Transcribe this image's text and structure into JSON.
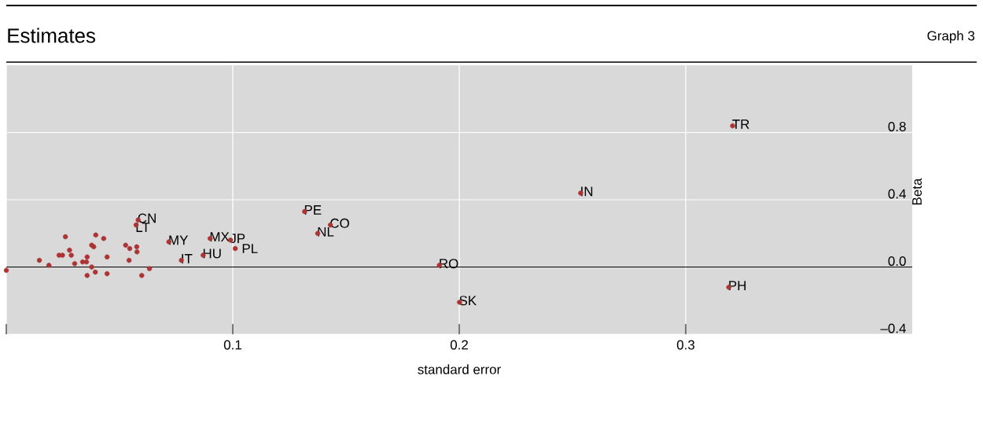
{
  "chart_data": {
    "type": "scatter",
    "title": "Estimates",
    "xlabel": "standard error",
    "ylabel": "Beta",
    "annotations": [
      "Graph 3",
      {
        "text": "CN",
        "x": 0.0582,
        "y": 0.28
      },
      {
        "text": "LT",
        "x": 0.0573,
        "y": 0.25
      },
      {
        "text": "MY",
        "x": 0.0718,
        "y": 0.15
      },
      {
        "text": "IT",
        "x": 0.0773,
        "y": 0.04
      },
      {
        "text": "HU",
        "x": 0.0869,
        "y": 0.07
      },
      {
        "text": "MX",
        "x": 0.09,
        "y": 0.17
      },
      {
        "text": "JP",
        "x": 0.099,
        "y": 0.16
      },
      {
        "text": "PL",
        "x": 0.1011,
        "y": 0.11
      },
      {
        "text": "PE",
        "x": 0.1317,
        "y": 0.33
      },
      {
        "text": "NL",
        "x": 0.1375,
        "y": 0.2
      },
      {
        "text": "CO",
        "x": 0.1431,
        "y": 0.25
      },
      {
        "text": "TR",
        "x": 0.3207,
        "y": 0.84
      },
      {
        "text": "IN",
        "x": 0.2536,
        "y": 0.44
      },
      {
        "text": "RO",
        "x": 0.1912,
        "y": 0.01
      },
      {
        "text": "SK",
        "x": 0.2001,
        "y": -0.21
      },
      {
        "text": "PH",
        "x": 0.319,
        "y": -0.12
      }
    ],
    "x": [
      0.0,
      0.0146,
      0.0188,
      0.0261,
      0.0233,
      0.0248,
      0.0279,
      0.0287,
      0.0302,
      0.0337,
      0.0354,
      0.0357,
      0.0372,
      0.0377,
      0.0357,
      0.0395,
      0.043,
      0.0377,
      0.0386,
      0.0393,
      0.0445,
      0.0445,
      0.0527,
      0.0545,
      0.0576,
      0.0577,
      0.0542,
      0.0598,
      0.0632,
      0.0582,
      0.0573,
      0.0718,
      0.0773,
      0.0869,
      0.09,
      0.099,
      0.1011,
      0.1317,
      0.1375,
      0.1431,
      0.3207,
      0.2536,
      0.1912,
      0.2001,
      0.319
    ],
    "values": [
      -0.02,
      0.04,
      0.01,
      0.18,
      0.07,
      0.07,
      0.1,
      0.07,
      0.02,
      0.03,
      0.03,
      0.06,
      null,
      0.0,
      -0.05,
      0.19,
      0.17,
      0.13,
      0.12,
      -0.03,
      0.06,
      -0.04,
      0.13,
      0.11,
      0.12,
      0.09,
      0.04,
      -0.05,
      -0.01,
      0.28,
      0.25,
      0.15,
      0.04,
      0.07,
      0.17,
      0.16,
      0.11,
      0.33,
      0.2,
      0.25,
      0.84,
      0.44,
      0.01,
      -0.21,
      -0.12
    ],
    "color": "#ac3434",
    "marker": "circle",
    "xlim": [
      0,
      0.4
    ],
    "xticks": [
      {
        "value": 0,
        "label": null
      },
      0.1,
      0.2,
      0.3
    ],
    "ylim": [
      -0.4,
      1.2
    ],
    "yticks": [
      {
        "value": -0.4,
        "label": "–0.4"
      },
      {
        "value": 0,
        "label": "0.0"
      },
      0.4,
      0.8
    ],
    "grid": true,
    "ref_lines": [
      {
        "axis": "y",
        "value": 0,
        "label": null,
        "color": "#000000"
      }
    ]
  }
}
